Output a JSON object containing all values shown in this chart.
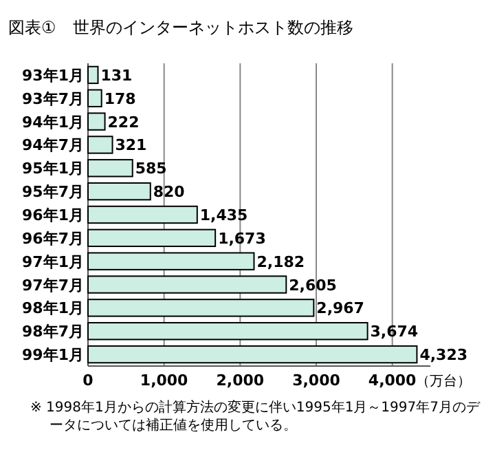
{
  "chart_data": {
    "type": "bar",
    "orientation": "horizontal",
    "title": "図表①　世界のインターネットホスト数の推移",
    "xlabel": "（万台）",
    "categories": [
      "93年1月",
      "93年7月",
      "94年1月",
      "94年7月",
      "95年1月",
      "95年7月",
      "96年1月",
      "96年7月",
      "97年1月",
      "97年7月",
      "98年1月",
      "98年7月",
      "99年1月"
    ],
    "values": [
      131,
      178,
      222,
      321,
      585,
      820,
      1435,
      1673,
      2182,
      2605,
      2967,
      3674,
      4323
    ],
    "value_labels": [
      "131",
      "178",
      "222",
      "321",
      "585",
      "820",
      "1,435",
      "1,673",
      "2,182",
      "2,605",
      "2,967",
      "3,674",
      "4,323"
    ],
    "color": "#cdeee2",
    "xlim": [
      0,
      4500
    ],
    "xticks": [
      {
        "value": 0,
        "label": "0"
      },
      {
        "value": 1000,
        "label": "1,000"
      },
      {
        "value": 2000,
        "label": "2,000"
      },
      {
        "value": 3000,
        "label": "3,000"
      },
      {
        "value": 4000,
        "label": "4,000"
      }
    ],
    "grid": "x",
    "annotations": [
      "※ 1998年1月からの計算方法の変更に伴い1995年1月～1997年7月のデータについては補正値を使用している。"
    ]
  }
}
